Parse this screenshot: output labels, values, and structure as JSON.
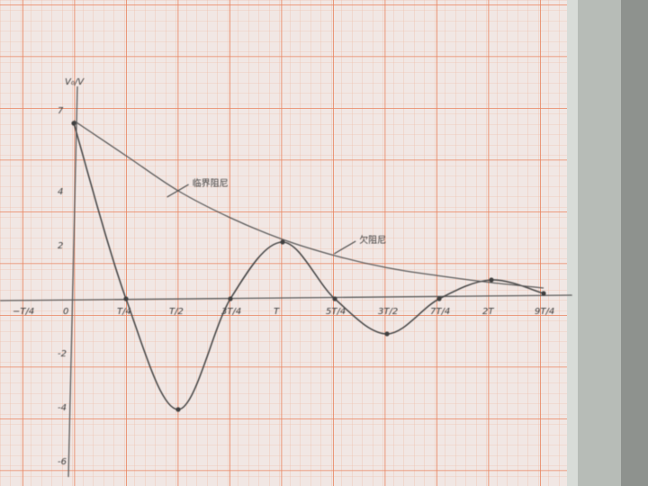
{
  "chart_data": {
    "type": "line",
    "ylabel": "V₀/V",
    "x_ticks": [
      {
        "x": -0.25,
        "label": "−T/4"
      },
      {
        "x": 0,
        "label": "0"
      },
      {
        "x": 0.25,
        "label": "T/4"
      },
      {
        "x": 0.5,
        "label": "T/2"
      },
      {
        "x": 0.75,
        "label": "3T/4"
      },
      {
        "x": 1.0,
        "label": "T"
      },
      {
        "x": 1.25,
        "label": "5T/4"
      },
      {
        "x": 1.5,
        "label": "3T/2"
      },
      {
        "x": 1.75,
        "label": "7T/4"
      },
      {
        "x": 2.0,
        "label": "2T"
      },
      {
        "x": 2.25,
        "label": "9T/4"
      }
    ],
    "y_ticks": [
      {
        "y": 7,
        "label": "7"
      },
      {
        "y": 4,
        "label": "4"
      },
      {
        "y": 2,
        "label": "2"
      },
      {
        "y": -2,
        "label": "-2"
      },
      {
        "y": -4,
        "label": "-4"
      },
      {
        "y": -6,
        "label": "-6"
      }
    ],
    "xlim": [
      -0.35,
      2.3
    ],
    "ylim": [
      -6.5,
      8.2
    ],
    "series": [
      {
        "name": "",
        "points": [
          [
            0,
            6.5
          ],
          [
            0.25,
            0
          ],
          [
            0.5,
            -4.1
          ],
          [
            0.75,
            0
          ],
          [
            1.0,
            2.1
          ],
          [
            1.25,
            0
          ],
          [
            1.5,
            -1.3
          ],
          [
            1.75,
            0
          ],
          [
            2.0,
            0.7
          ],
          [
            2.25,
            0.2
          ]
        ]
      },
      {
        "name": "",
        "points": [
          [
            0,
            6.6
          ],
          [
            0.25,
            5.3
          ],
          [
            0.5,
            4.0
          ],
          [
            0.75,
            3.0
          ],
          [
            1.0,
            2.2
          ],
          [
            1.25,
            1.6
          ],
          [
            1.5,
            1.15
          ],
          [
            1.75,
            0.85
          ],
          [
            2.0,
            0.6
          ],
          [
            2.25,
            0.4
          ]
        ]
      }
    ],
    "annotations": [
      {
        "text": "临界阻尼",
        "x": 0.55,
        "y": 4.1
      },
      {
        "text": "欠阻尼",
        "x": 1.35,
        "y": 2.0
      }
    ],
    "grid": true
  },
  "colors": {
    "paper": "#f1e7e4",
    "grid_major": "#e9845f",
    "grid_minor": "#f0b59c",
    "pencil": "#4a4a4a"
  }
}
